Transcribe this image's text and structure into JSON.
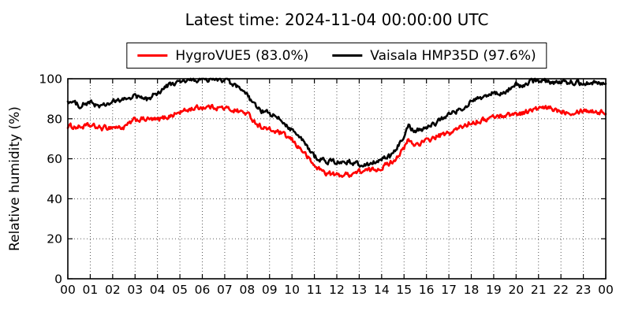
{
  "title": "Latest time: 2024-11-04 00:00:00 UTC",
  "legend": {
    "position": "top-outside",
    "entries": [
      {
        "label": "HygroVUE5 (83.0%)",
        "color": "#ff0000"
      },
      {
        "label": "Vaisala HMP35D (97.6%)",
        "color": "#000000"
      }
    ]
  },
  "chart_data": {
    "type": "line",
    "title": "Latest time: 2024-11-04 00:00:00 UTC",
    "xlabel": "",
    "ylabel": "Relative humidity (%)",
    "xlim": [
      0,
      24
    ],
    "ylim": [
      0,
      100
    ],
    "x_unit": "hour of day (UTC)",
    "grid": "dotted",
    "x_tick_labels": [
      "00",
      "01",
      "02",
      "03",
      "04",
      "05",
      "06",
      "07",
      "08",
      "09",
      "10",
      "11",
      "12",
      "13",
      "14",
      "15",
      "16",
      "17",
      "18",
      "19",
      "20",
      "21",
      "22",
      "23",
      "00"
    ],
    "y_ticks": [
      0,
      20,
      40,
      60,
      80,
      100
    ],
    "x": [
      0,
      0.5,
      1,
      1.5,
      2,
      2.5,
      3,
      3.5,
      4,
      4.5,
      5,
      5.5,
      6,
      6.5,
      7,
      7.5,
      8,
      8.5,
      9,
      9.5,
      10,
      10.5,
      11,
      11.5,
      12,
      12.5,
      13,
      13.5,
      14,
      14.5,
      15,
      15.2,
      15.4,
      15.5,
      16,
      16.5,
      17,
      17.5,
      18,
      18.5,
      19,
      19.3,
      19.5,
      20,
      20.3,
      20.5,
      21,
      21.5,
      22,
      22.5,
      23,
      23.5,
      24
    ],
    "series": [
      {
        "name": "HygroVUE5 (83.0%)",
        "color": "#ff0000",
        "latest_value": 83.0,
        "values": [
          76.3,
          75.8,
          76.5,
          75.2,
          75.9,
          75.5,
          79.5,
          79.8,
          79.3,
          81.2,
          83.2,
          85.0,
          85.8,
          86.0,
          85.2,
          84.2,
          82.6,
          76.8,
          74.3,
          72.8,
          69.3,
          63.6,
          56.4,
          53.0,
          51.8,
          52.1,
          53.6,
          54.2,
          55.6,
          58.8,
          65.0,
          69.6,
          67.0,
          67.2,
          68.8,
          71.3,
          72.6,
          75.5,
          78.3,
          79.2,
          81.0,
          81.4,
          81.8,
          82.5,
          83.0,
          83.6,
          85.1,
          85.2,
          83.9,
          83.3,
          84.4,
          83.7,
          83.0
        ]
      },
      {
        "name": "Vaisala HMP35D (97.6%)",
        "color": "#000000",
        "latest_value": 97.6,
        "values": [
          89.0,
          86.8,
          88.0,
          86.0,
          88.2,
          89.6,
          91.5,
          89.4,
          93.0,
          96.8,
          98.3,
          99.2,
          99.5,
          99.6,
          99.4,
          96.2,
          91.5,
          84.5,
          82.5,
          79.4,
          74.6,
          68.6,
          61.2,
          58.8,
          58.3,
          58.6,
          57.0,
          57.6,
          59.5,
          61.6,
          72.0,
          77.3,
          74.0,
          74.3,
          75.2,
          78.5,
          82.3,
          84.5,
          88.3,
          90.5,
          93.0,
          91.8,
          93.5,
          97.3,
          95.8,
          98.0,
          99.3,
          98.6,
          98.0,
          98.4,
          98.0,
          98.3,
          97.6
        ]
      }
    ],
    "legend_position": "top"
  }
}
